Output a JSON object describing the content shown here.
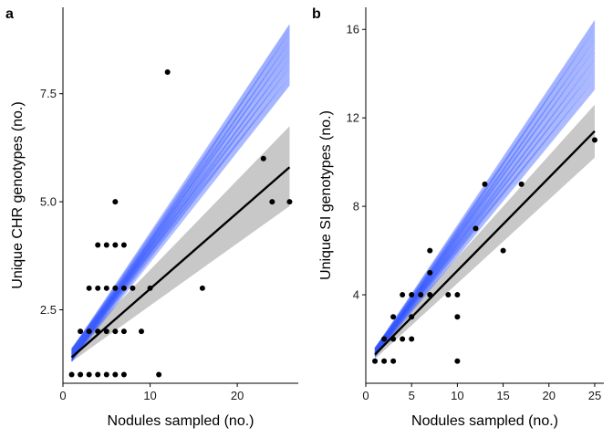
{
  "chart_data": [
    {
      "type": "scatter",
      "panel_label": "a",
      "xlabel": "Nodules sampled (no.)",
      "ylabel": "Unique CHR genotypes (no.)",
      "xlim": [
        0,
        27
      ],
      "ylim": [
        0.8,
        9.5
      ],
      "xticks": [
        0,
        10,
        20
      ],
      "yticks": [
        2.5,
        5.0,
        7.5
      ],
      "ytick_labels": [
        "2.5",
        "5.0",
        "7.5"
      ],
      "points": [
        [
          1,
          1
        ],
        [
          2,
          1
        ],
        [
          3,
          1
        ],
        [
          4,
          1
        ],
        [
          5,
          1
        ],
        [
          6,
          1
        ],
        [
          7,
          1
        ],
        [
          11,
          1
        ],
        [
          2,
          2
        ],
        [
          3,
          2
        ],
        [
          4,
          2
        ],
        [
          5,
          2
        ],
        [
          6,
          2
        ],
        [
          7,
          2
        ],
        [
          9,
          2
        ],
        [
          3,
          3
        ],
        [
          4,
          3
        ],
        [
          5,
          3
        ],
        [
          6,
          3
        ],
        [
          7,
          3
        ],
        [
          8,
          3
        ],
        [
          10,
          3
        ],
        [
          16,
          3
        ],
        [
          4,
          4
        ],
        [
          5,
          4
        ],
        [
          6,
          4
        ],
        [
          7,
          4
        ],
        [
          6,
          5
        ],
        [
          24,
          5
        ],
        [
          26,
          5
        ],
        [
          23,
          6
        ],
        [
          12,
          8
        ]
      ],
      "fit_line": {
        "x": [
          1,
          26
        ],
        "y": [
          1.4,
          5.8
        ]
      },
      "ci_band": {
        "x": [
          1,
          26
        ],
        "lower": [
          1.3,
          4.9
        ],
        "upper": [
          1.55,
          6.75
        ]
      },
      "simulated_lines": {
        "x_start": 1,
        "x_end": 26,
        "y_start_range": [
          1.3,
          1.6
        ],
        "y_end_range": [
          7.7,
          9.1
        ]
      },
      "colors": {
        "points": "#000000",
        "fit": "#000000",
        "ci": "#c8c8c8",
        "simulated": "#3355ff"
      }
    },
    {
      "type": "scatter",
      "panel_label": "b",
      "xlabel": "Nodules sampled (no.)",
      "ylabel": "Unique SI genotypes (no.)",
      "xlim": [
        0,
        26
      ],
      "ylim": [
        0,
        17
      ],
      "xticks": [
        0,
        5,
        10,
        15,
        20,
        25
      ],
      "yticks": [
        4,
        8,
        12,
        16
      ],
      "ytick_labels": [
        "4",
        "8",
        "12",
        "16"
      ],
      "points": [
        [
          1,
          1
        ],
        [
          2,
          1
        ],
        [
          3,
          1
        ],
        [
          10,
          1
        ],
        [
          2,
          2
        ],
        [
          3,
          2
        ],
        [
          4,
          2
        ],
        [
          5,
          2
        ],
        [
          3,
          3
        ],
        [
          5,
          3
        ],
        [
          10,
          3
        ],
        [
          4,
          4
        ],
        [
          5,
          4
        ],
        [
          6,
          4
        ],
        [
          7,
          4
        ],
        [
          9,
          4
        ],
        [
          10,
          4
        ],
        [
          7,
          5
        ],
        [
          7,
          6
        ],
        [
          15,
          6
        ],
        [
          12,
          7
        ],
        [
          13,
          9
        ],
        [
          17,
          9
        ],
        [
          25,
          11
        ]
      ],
      "fit_line": {
        "x": [
          1,
          25
        ],
        "y": [
          1.3,
          11.4
        ]
      },
      "ci_band": {
        "x": [
          1,
          25
        ],
        "lower": [
          1.1,
          10.2
        ],
        "upper": [
          1.55,
          12.6
        ]
      },
      "simulated_lines": {
        "x_start": 1,
        "x_end": 25,
        "y_start_range": [
          1.2,
          1.6
        ],
        "y_end_range": [
          13.3,
          16.4
        ]
      },
      "colors": {
        "points": "#000000",
        "fit": "#000000",
        "ci": "#c8c8c8",
        "simulated": "#3355ff"
      }
    }
  ]
}
